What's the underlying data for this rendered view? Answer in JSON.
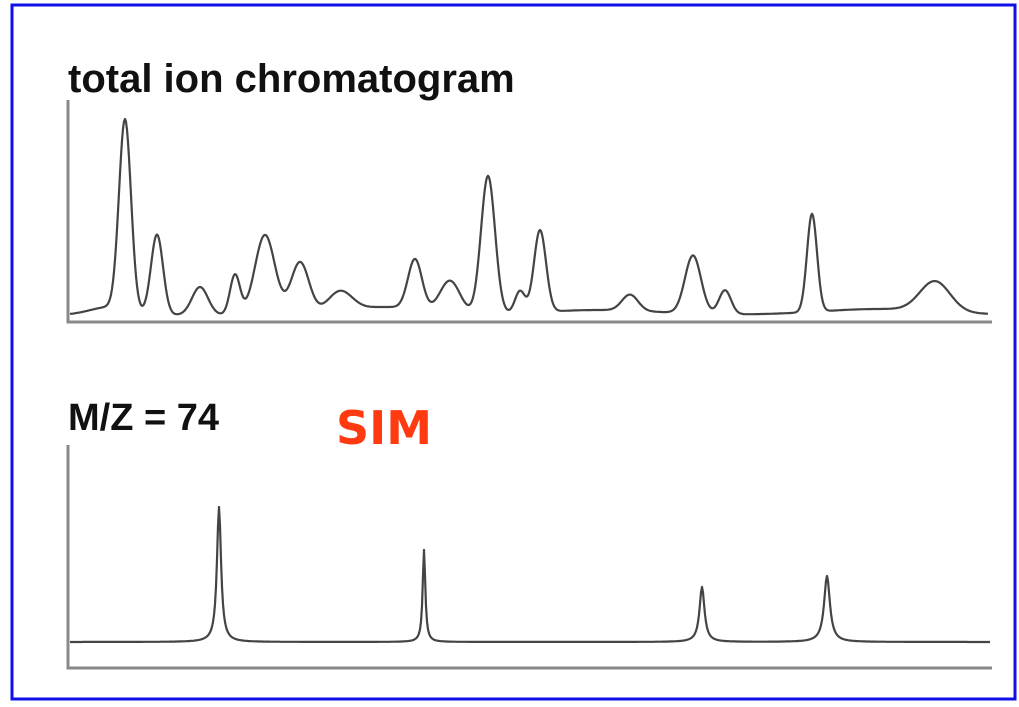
{
  "panels": [
    {
      "label": "total ion chromatogram"
    },
    {
      "label": "M/Z = 74",
      "tag": "SIM"
    }
  ]
}
